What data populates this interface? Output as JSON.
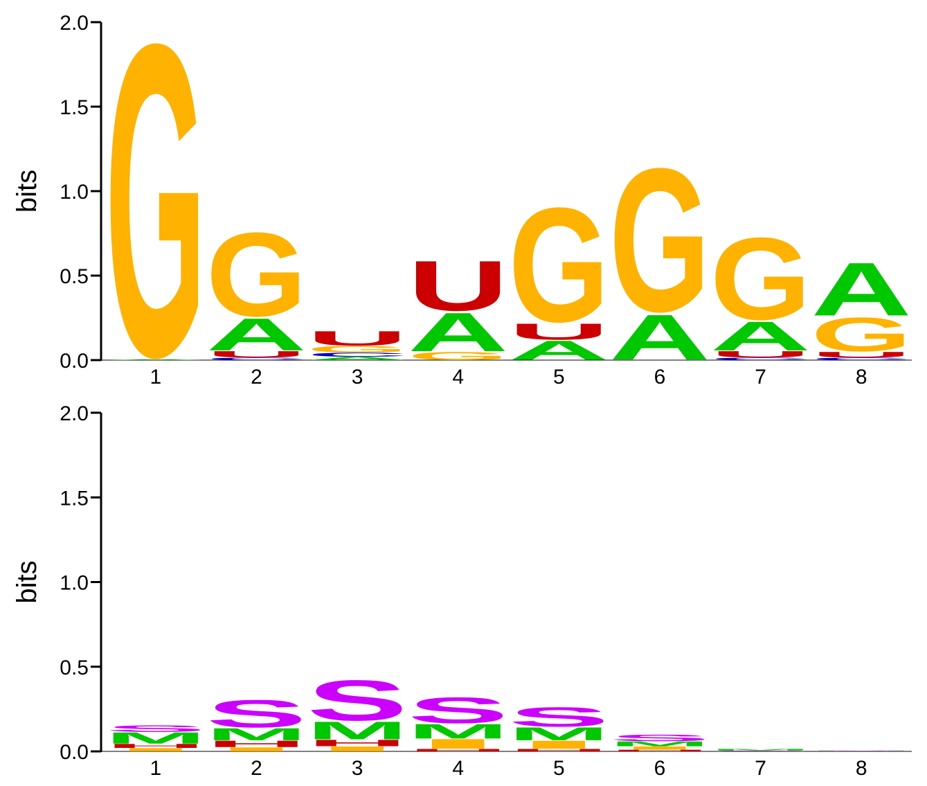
{
  "colors": {
    "A": "#00c800",
    "G": "#ffb300",
    "U": "#cc0000",
    "C": "#0000cc",
    "M": "#00c800",
    "S": "#cc00ff",
    "H": "#cc0000",
    "I": "#ffb300",
    "B": "#0000cc",
    "axis": "#000000"
  },
  "chart_data": [
    {
      "type": "sequence-logo",
      "alphabet": "nucleotide",
      "ylabel": "bits",
      "ylim": [
        0,
        2.0
      ],
      "yticks": [
        "0.0",
        "0.5",
        "1.0",
        "1.5",
        "2.0"
      ],
      "xticks": [
        "1",
        "2",
        "3",
        "4",
        "5",
        "6",
        "7",
        "8"
      ],
      "positions": [
        {
          "pos": "1",
          "letters": [
            {
              "l": "A",
              "h": 0.005
            },
            {
              "l": "G",
              "h": 1.94
            }
          ]
        },
        {
          "pos": "2",
          "letters": [
            {
              "l": "C",
              "h": 0.015
            },
            {
              "l": "U",
              "h": 0.04
            },
            {
              "l": "A",
              "h": 0.2
            },
            {
              "l": "G",
              "h": 0.52
            }
          ]
        },
        {
          "pos": "3",
          "letters": [
            {
              "l": "A",
              "h": 0.02
            },
            {
              "l": "C",
              "h": 0.025
            },
            {
              "l": "G",
              "h": 0.04
            },
            {
              "l": "U",
              "h": 0.09
            }
          ]
        },
        {
          "pos": "4",
          "letters": [
            {
              "l": "G",
              "h": 0.05
            },
            {
              "l": "A",
              "h": 0.24
            },
            {
              "l": "U",
              "h": 0.31
            }
          ]
        },
        {
          "pos": "5",
          "letters": [
            {
              "l": "A",
              "h": 0.12
            },
            {
              "l": "U",
              "h": 0.1
            },
            {
              "l": "G",
              "h": 0.71
            }
          ]
        },
        {
          "pos": "6",
          "letters": [
            {
              "l": "A",
              "h": 0.28
            },
            {
              "l": "G",
              "h": 0.89
            }
          ]
        },
        {
          "pos": "7",
          "letters": [
            {
              "l": "C",
              "h": 0.015
            },
            {
              "l": "U",
              "h": 0.04
            },
            {
              "l": "A",
              "h": 0.18
            },
            {
              "l": "G",
              "h": 0.51
            }
          ]
        },
        {
          "pos": "8",
          "letters": [
            {
              "l": "C",
              "h": 0.015
            },
            {
              "l": "U",
              "h": 0.035
            },
            {
              "l": "G",
              "h": 0.21
            },
            {
              "l": "A",
              "h": 0.33
            }
          ]
        }
      ]
    },
    {
      "type": "sequence-logo",
      "alphabet": "structure",
      "ylabel": "bits",
      "ylim": [
        0,
        2.0
      ],
      "yticks": [
        "0.0",
        "0.5",
        "1.0",
        "1.5",
        "2.0"
      ],
      "xticks": [
        "1",
        "2",
        "3",
        "4",
        "5",
        "6",
        "7",
        "8"
      ],
      "positions": [
        {
          "pos": "1",
          "letters": [
            {
              "l": "I",
              "h": 0.02
            },
            {
              "l": "H",
              "h": 0.025
            },
            {
              "l": "M",
              "h": 0.07
            },
            {
              "l": "S",
              "h": 0.04
            }
          ]
        },
        {
          "pos": "2",
          "letters": [
            {
              "l": "I",
              "h": 0.025
            },
            {
              "l": "H",
              "h": 0.04
            },
            {
              "l": "M",
              "h": 0.075
            },
            {
              "l": "S",
              "h": 0.17
            }
          ]
        },
        {
          "pos": "3",
          "letters": [
            {
              "l": "I",
              "h": 0.03
            },
            {
              "l": "H",
              "h": 0.04
            },
            {
              "l": "M",
              "h": 0.11
            },
            {
              "l": "S",
              "h": 0.25
            }
          ]
        },
        {
          "pos": "4",
          "letters": [
            {
              "l": "H",
              "h": 0.015
            },
            {
              "l": "I",
              "h": 0.06
            },
            {
              "l": "M",
              "h": 0.09
            },
            {
              "l": "S",
              "h": 0.16
            }
          ]
        },
        {
          "pos": "5",
          "letters": [
            {
              "l": "H",
              "h": 0.015
            },
            {
              "l": "I",
              "h": 0.05
            },
            {
              "l": "M",
              "h": 0.08
            },
            {
              "l": "S",
              "h": 0.12
            }
          ]
        },
        {
          "pos": "6",
          "letters": [
            {
              "l": "H",
              "h": 0.01
            },
            {
              "l": "I",
              "h": 0.02
            },
            {
              "l": "M",
              "h": 0.03
            },
            {
              "l": "S",
              "h": 0.04
            }
          ]
        },
        {
          "pos": "7",
          "letters": [
            {
              "l": "S",
              "h": 0.005
            },
            {
              "l": "M",
              "h": 0.01
            }
          ]
        },
        {
          "pos": "8",
          "letters": [
            {
              "l": "S",
              "h": 0.003
            },
            {
              "l": "M",
              "h": 0.002
            }
          ]
        }
      ]
    }
  ]
}
